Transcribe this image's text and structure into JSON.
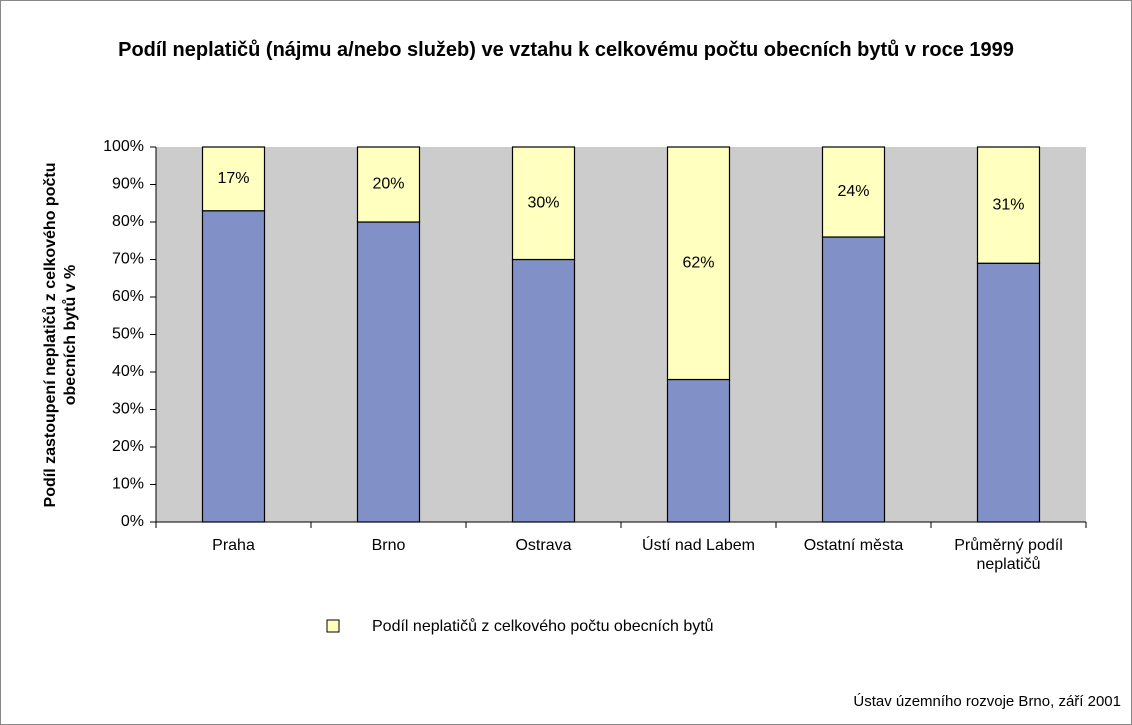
{
  "chart_data": {
    "type": "stacked_bar",
    "title": "Podíl neplatičů (nájmu a/nebo služeb) ve vztahu k celkovému počtu obecních bytů v roce 1999",
    "y_label": "Podíl zastoupení neplatičů z celkového počtu obecních bytů v %",
    "source": "Ústav územního rozvoje Brno, září 2001",
    "categories": [
      "Praha",
      "Brno",
      "Ostrava",
      "Ústí nad Labem",
      "Ostatní města",
      "Průměrný podíl neplatičů"
    ],
    "series": [
      {
        "color": "#8290c8",
        "values": [
          83,
          80,
          70,
          38,
          76,
          69
        ]
      },
      {
        "name": "Podíl neplatičů z celkového počtu obecních bytů",
        "color": "#ffffc0",
        "values": [
          17,
          20,
          30,
          62,
          24,
          31
        ],
        "value_labels": [
          "17%",
          "20%",
          "30%",
          "62%",
          "24%",
          "31%"
        ]
      }
    ],
    "ylim": [
      0,
      100
    ],
    "yticks": [
      {
        "value": 0,
        "label": "0%"
      },
      {
        "value": 10,
        "label": "10%"
      },
      {
        "value": 20,
        "label": "20%"
      },
      {
        "value": 30,
        "label": "30%"
      },
      {
        "value": 40,
        "label": "40%"
      },
      {
        "value": 50,
        "label": "50%"
      },
      {
        "value": 60,
        "label": "60%"
      },
      {
        "value": 70,
        "label": "70%"
      },
      {
        "value": 80,
        "label": "80%"
      },
      {
        "value": 90,
        "label": "90%"
      },
      {
        "value": 100,
        "label": "100%"
      }
    ],
    "plot_background": "#cccccc",
    "legend": "bottom"
  }
}
